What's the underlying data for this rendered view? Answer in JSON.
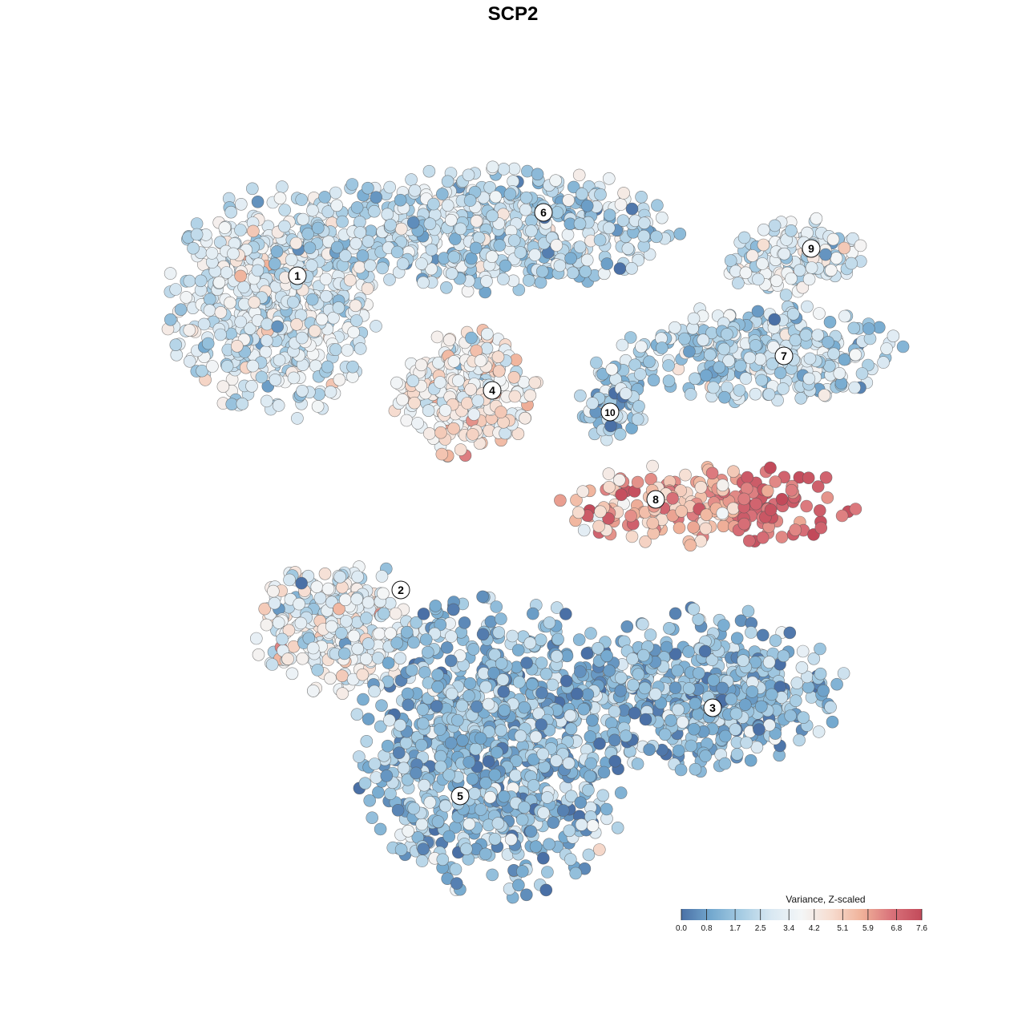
{
  "title": "SCP2",
  "chart_data": {
    "type": "scatter",
    "title": "SCP2",
    "xlabel": "",
    "ylabel": "",
    "grid": false,
    "color_scale": {
      "name": "Variance, Z-scaled",
      "min": 0.0,
      "max": 7.6,
      "ticks": [
        "0.0",
        "0.8",
        "1.7",
        "2.5",
        "3.4",
        "4.2",
        "5.1",
        "5.9",
        "6.8",
        "7.6"
      ],
      "stops": [
        "#4a70a6",
        "#74a9cf",
        "#a6cce3",
        "#d9e8f2",
        "#f4f6f7",
        "#f6dccf",
        "#f0b29a",
        "#d9727a",
        "#c24a5a"
      ]
    },
    "legend_position": "bottom-right",
    "clusters": [
      {
        "id": "1",
        "mean_value": 3.0
      },
      {
        "id": "2",
        "mean_value": 3.4
      },
      {
        "id": "3",
        "mean_value": 1.4
      },
      {
        "id": "4",
        "mean_value": 4.0
      },
      {
        "id": "5",
        "mean_value": 1.5
      },
      {
        "id": "6",
        "mean_value": 2.4
      },
      {
        "id": "7",
        "mean_value": 2.2
      },
      {
        "id": "8",
        "mean_value": 5.6
      },
      {
        "id": "9",
        "mean_value": 2.9
      },
      {
        "id": "10",
        "mean_value": 1.8
      }
    ]
  }
}
